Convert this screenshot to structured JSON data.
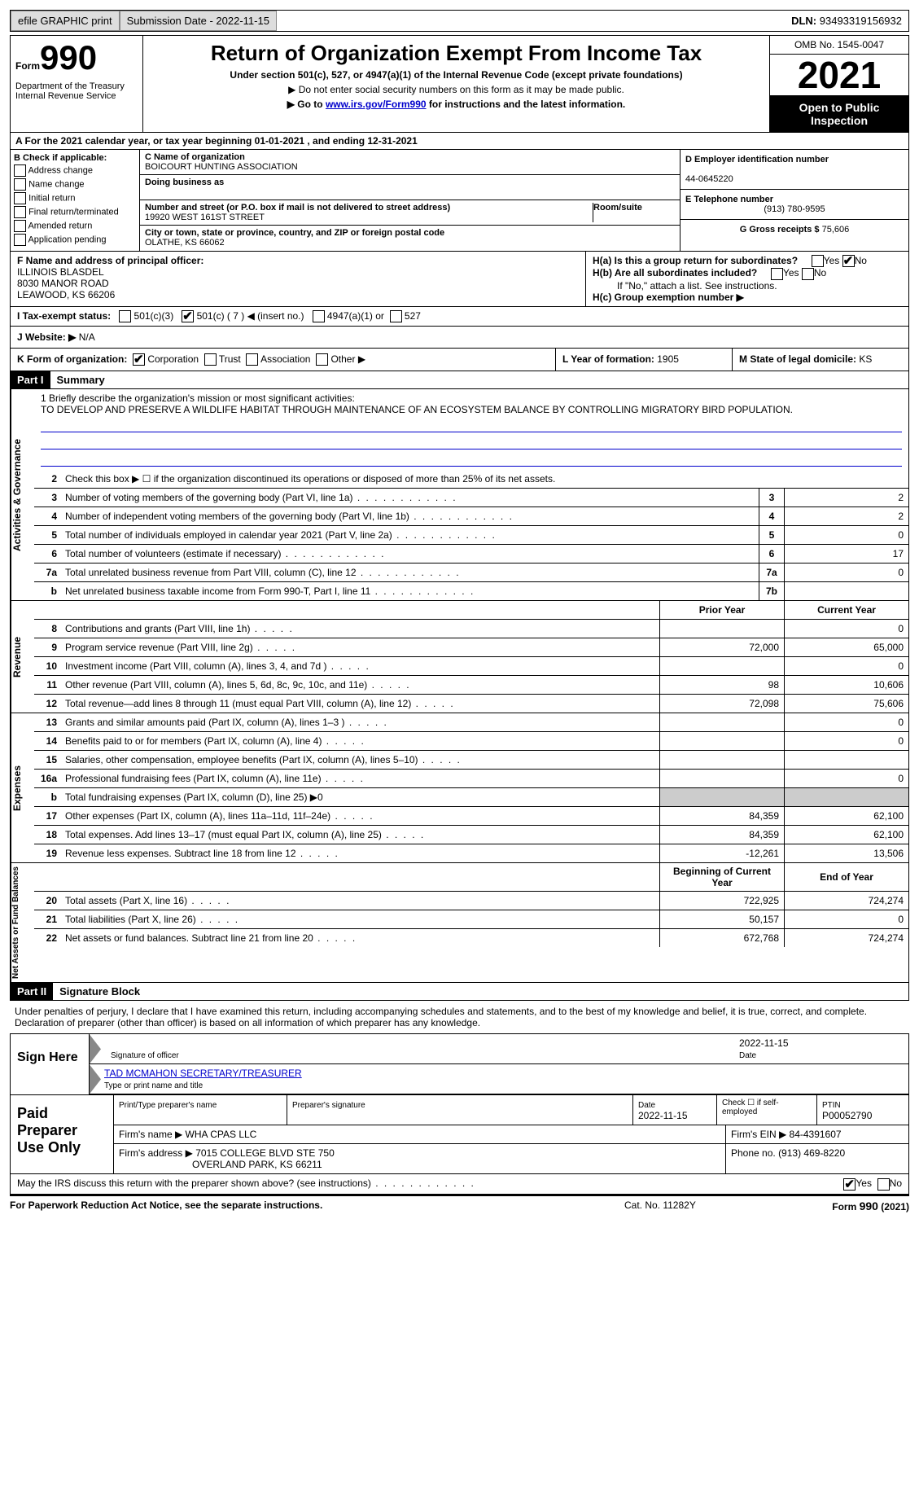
{
  "topbar": {
    "efile": "efile GRAPHIC print",
    "submission_lbl": "Submission Date - ",
    "submission_date": "2022-11-15",
    "dln_lbl": "DLN: ",
    "dln": "93493319156932"
  },
  "header": {
    "form": "Form",
    "num": "990",
    "dept": "Department of the Treasury\nInternal Revenue Service",
    "title": "Return of Organization Exempt From Income Tax",
    "sub": "Under section 501(c), 527, or 4947(a)(1) of the Internal Revenue Code (except private foundations)",
    "note": "▶ Do not enter social security numbers on this form as it may be made public.",
    "link_pre": "▶ Go to ",
    "link": "www.irs.gov/Form990",
    "link_post": " for instructions and the latest information.",
    "omb": "OMB No. 1545-0047",
    "year": "2021",
    "otp": "Open to Public Inspection"
  },
  "line_a": "A For the 2021 calendar year, or tax year beginning 01-01-2021   , and ending 12-31-2021",
  "section_b": {
    "hdr": "B Check if applicable:",
    "opts": [
      "Address change",
      "Name change",
      "Initial return",
      "Final return/terminated",
      "Amended return",
      "Application pending"
    ]
  },
  "section_c": {
    "name_lbl": "C Name of organization",
    "name": "BOICOURT HUNTING ASSOCIATION",
    "dba_lbl": "Doing business as",
    "addr_lbl": "Number and street (or P.O. box if mail is not delivered to street address)",
    "room_lbl": "Room/suite",
    "addr": "19920 WEST 161ST STREET",
    "city_lbl": "City or town, state or province, country, and ZIP or foreign postal code",
    "city": "OLATHE, KS  66062"
  },
  "section_d": {
    "ein_lbl": "D Employer identification number",
    "ein": "44-0645220",
    "tel_lbl": "E Telephone number",
    "tel": "(913) 780-9595",
    "gross_lbl": "G Gross receipts $ ",
    "gross": "75,606"
  },
  "section_f": {
    "lbl": "F  Name and address of principal officer:",
    "name": "ILLINOIS BLASDEL",
    "addr1": "8030 MANOR ROAD",
    "addr2": "LEAWOOD, KS  66206",
    "ha": "H(a)  Is this a group return for subordinates?",
    "hb": "H(b)  Are all subordinates included?",
    "hb_note": "If \"No,\" attach a list. See instructions.",
    "hc": "H(c)  Group exemption number ▶",
    "yes": "Yes",
    "no": "No"
  },
  "tax_status": {
    "lbl": "I  Tax-exempt status:",
    "o1": "501(c)(3)",
    "o2": "501(c) ( 7 ) ◀ (insert no.)",
    "o3": "4947(a)(1) or",
    "o4": "527"
  },
  "website": {
    "lbl": "J  Website: ▶",
    "val": "  N/A"
  },
  "section_k": {
    "lbl": "K Form of organization:",
    "opts": [
      "Corporation",
      "Trust",
      "Association",
      "Other ▶"
    ],
    "l_lbl": "L Year of formation: ",
    "l_val": "1905",
    "m_lbl": "M State of legal domicile: ",
    "m_val": "KS"
  },
  "part1": {
    "hdr": "Part I",
    "title": "Summary"
  },
  "mission": {
    "lbl": "1   Briefly describe the organization's mission or most significant activities:",
    "txt": "TO DEVELOP AND PRESERVE A WILDLIFE HABITAT THROUGH MAINTENANCE OF AN ECOSYSTEM BALANCE BY CONTROLLING MIGRATORY BIRD POPULATION."
  },
  "vtabs": {
    "ag": "Activities & Governance",
    "rev": "Revenue",
    "exp": "Expenses",
    "net": "Net Assets or Fund Balances"
  },
  "rows_ag": [
    {
      "n": "2",
      "t": "Check this box ▶ ☐  if the organization discontinued its operations or disposed of more than 25% of its net assets."
    },
    {
      "n": "3",
      "t": "Number of voting members of the governing body (Part VI, line 1a)",
      "b": "3",
      "v": "2"
    },
    {
      "n": "4",
      "t": "Number of independent voting members of the governing body (Part VI, line 1b)",
      "b": "4",
      "v": "2"
    },
    {
      "n": "5",
      "t": "Total number of individuals employed in calendar year 2021 (Part V, line 2a)",
      "b": "5",
      "v": "0"
    },
    {
      "n": "6",
      "t": "Total number of volunteers (estimate if necessary)",
      "b": "6",
      "v": "17"
    },
    {
      "n": "7a",
      "t": "Total unrelated business revenue from Part VIII, column (C), line 12",
      "b": "7a",
      "v": "0"
    },
    {
      "n": "b",
      "t": "Net unrelated business taxable income from Form 990-T, Part I, line 11",
      "b": "7b",
      "v": ""
    }
  ],
  "hdr_cols": {
    "py": "Prior Year",
    "cy": "Current Year"
  },
  "rows_rev": [
    {
      "n": "8",
      "t": "Contributions and grants (Part VIII, line 1h)",
      "py": "",
      "cy": "0"
    },
    {
      "n": "9",
      "t": "Program service revenue (Part VIII, line 2g)",
      "py": "72,000",
      "cy": "65,000"
    },
    {
      "n": "10",
      "t": "Investment income (Part VIII, column (A), lines 3, 4, and 7d )",
      "py": "",
      "cy": "0"
    },
    {
      "n": "11",
      "t": "Other revenue (Part VIII, column (A), lines 5, 6d, 8c, 9c, 10c, and 11e)",
      "py": "98",
      "cy": "10,606"
    },
    {
      "n": "12",
      "t": "Total revenue—add lines 8 through 11 (must equal Part VIII, column (A), line 12)",
      "py": "72,098",
      "cy": "75,606"
    }
  ],
  "rows_exp": [
    {
      "n": "13",
      "t": "Grants and similar amounts paid (Part IX, column (A), lines 1–3 )",
      "py": "",
      "cy": "0"
    },
    {
      "n": "14",
      "t": "Benefits paid to or for members (Part IX, column (A), line 4)",
      "py": "",
      "cy": "0"
    },
    {
      "n": "15",
      "t": "Salaries, other compensation, employee benefits (Part IX, column (A), lines 5–10)",
      "py": "",
      "cy": ""
    },
    {
      "n": "16a",
      "t": "Professional fundraising fees (Part IX, column (A), line 11e)",
      "py": "",
      "cy": "0"
    },
    {
      "n": "b",
      "t": "Total fundraising expenses (Part IX, column (D), line 25) ▶0",
      "shade": true
    },
    {
      "n": "17",
      "t": "Other expenses (Part IX, column (A), lines 11a–11d, 11f–24e)",
      "py": "84,359",
      "cy": "62,100"
    },
    {
      "n": "18",
      "t": "Total expenses. Add lines 13–17 (must equal Part IX, column (A), line 25)",
      "py": "84,359",
      "cy": "62,100"
    },
    {
      "n": "19",
      "t": "Revenue less expenses. Subtract line 18 from line 12",
      "py": "-12,261",
      "cy": "13,506"
    }
  ],
  "hdr_cols2": {
    "py": "Beginning of Current Year",
    "cy": "End of Year"
  },
  "rows_net": [
    {
      "n": "20",
      "t": "Total assets (Part X, line 16)",
      "py": "722,925",
      "cy": "724,274"
    },
    {
      "n": "21",
      "t": "Total liabilities (Part X, line 26)",
      "py": "50,157",
      "cy": "0"
    },
    {
      "n": "22",
      "t": "Net assets or fund balances. Subtract line 21 from line 20",
      "py": "672,768",
      "cy": "724,274"
    }
  ],
  "part2": {
    "hdr": "Part II",
    "title": "Signature Block"
  },
  "sig_text": "Under penalties of perjury, I declare that I have examined this return, including accompanying schedules and statements, and to the best of my knowledge and belief, it is true, correct, and complete. Declaration of preparer (other than officer) is based on all information of which preparer has any knowledge.",
  "sign": {
    "lbl": "Sign Here",
    "sig_lbl": "Signature of officer",
    "date_lbl": "Date",
    "date": "2022-11-15",
    "name": "TAD MCMAHON  SECRETARY/TREASURER",
    "name_lbl": "Type or print name and title"
  },
  "paid": {
    "lbl": "Paid Preparer Use Only",
    "prep_name_lbl": "Print/Type preparer's name",
    "prep_sig_lbl": "Preparer's signature",
    "date_lbl": "Date",
    "date": "2022-11-15",
    "check_lbl": "Check ☐ if self-employed",
    "ptin_lbl": "PTIN",
    "ptin": "P00052790",
    "firm_name_lbl": "Firm's name    ▶ ",
    "firm_name": "WHA CPAS LLC",
    "firm_ein_lbl": "Firm's EIN ▶ ",
    "firm_ein": "84-4391607",
    "firm_addr_lbl": "Firm's address ▶ ",
    "firm_addr1": "7015 COLLEGE BLVD STE 750",
    "firm_addr2": "OVERLAND PARK, KS  66211",
    "phone_lbl": "Phone no. ",
    "phone": "(913) 469-8220"
  },
  "discuss": "May the IRS discuss this return with the preparer shown above? (see instructions)",
  "bottom": {
    "l": "For Paperwork Reduction Act Notice, see the separate instructions.",
    "c": "Cat. No. 11282Y",
    "r": "Form 990 (2021)"
  }
}
